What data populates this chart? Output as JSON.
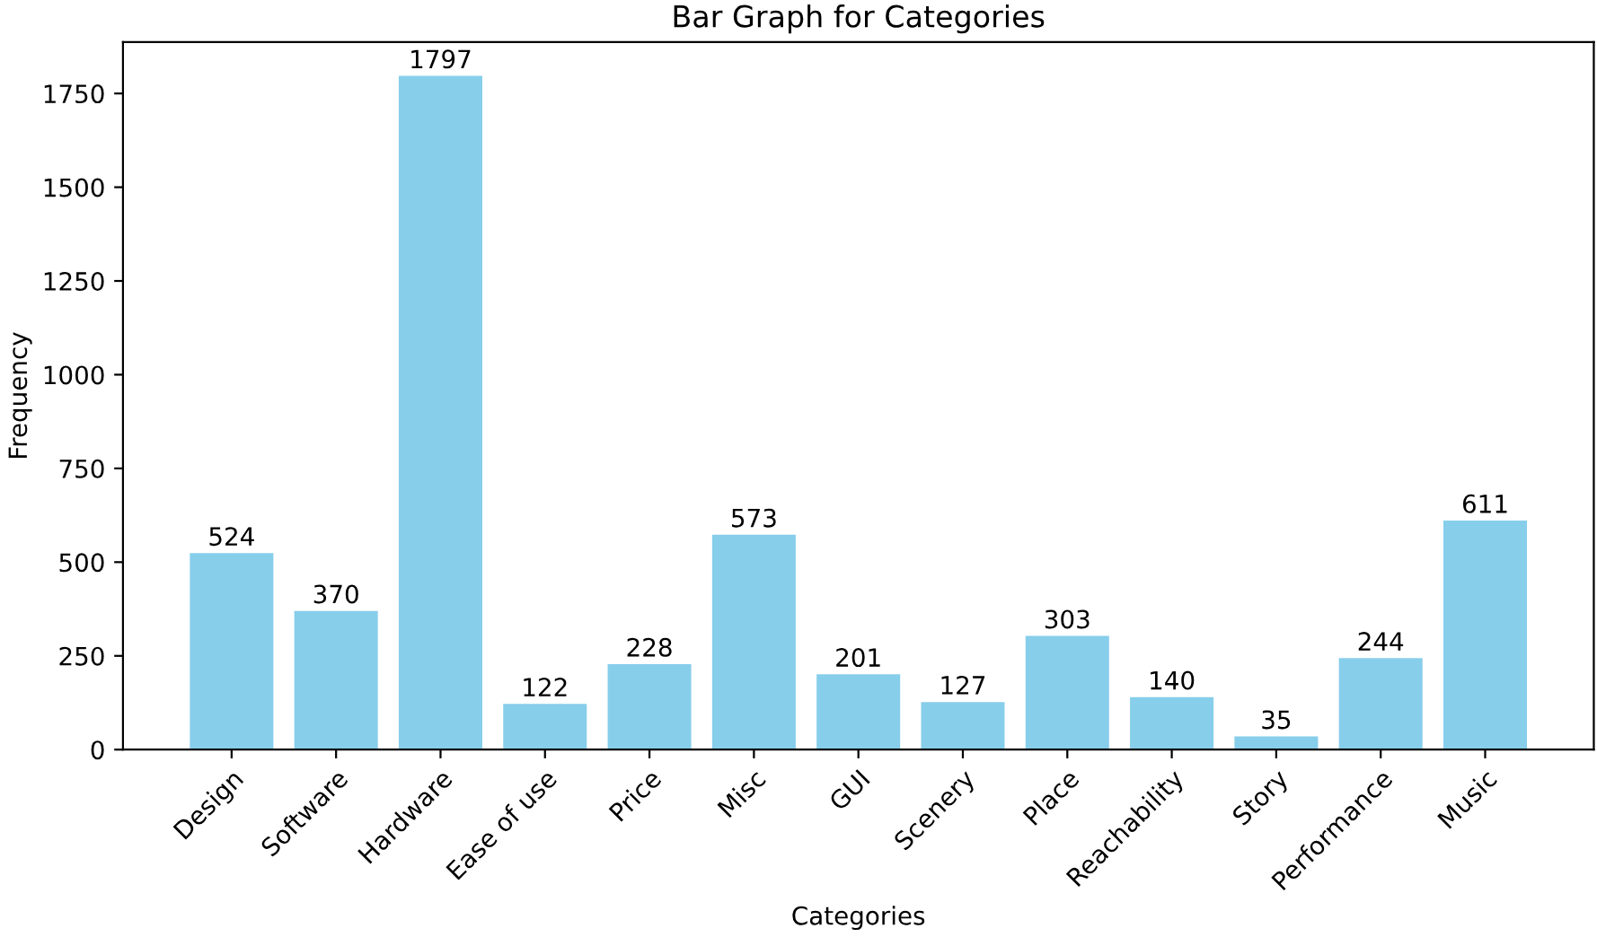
{
  "chart_data": {
    "type": "bar",
    "title": "Bar Graph for Categories",
    "xlabel": "Categories",
    "ylabel": "Frequency",
    "categories": [
      "Design",
      "Software",
      "Hardware",
      "Ease of use",
      "Price",
      "Misc",
      "GUI",
      "Scenery",
      "Place",
      "Reachability",
      "Story",
      "Performance",
      "Music"
    ],
    "values": [
      524,
      370,
      1797,
      122,
      228,
      573,
      201,
      127,
      303,
      140,
      35,
      244,
      611
    ],
    "color": "#87ceeb",
    "data_labels": true,
    "ylim": [
      0,
      1886.85
    ],
    "yticks": [
      0,
      250,
      500,
      750,
      1000,
      1250,
      1500,
      1750
    ],
    "grid": false
  }
}
